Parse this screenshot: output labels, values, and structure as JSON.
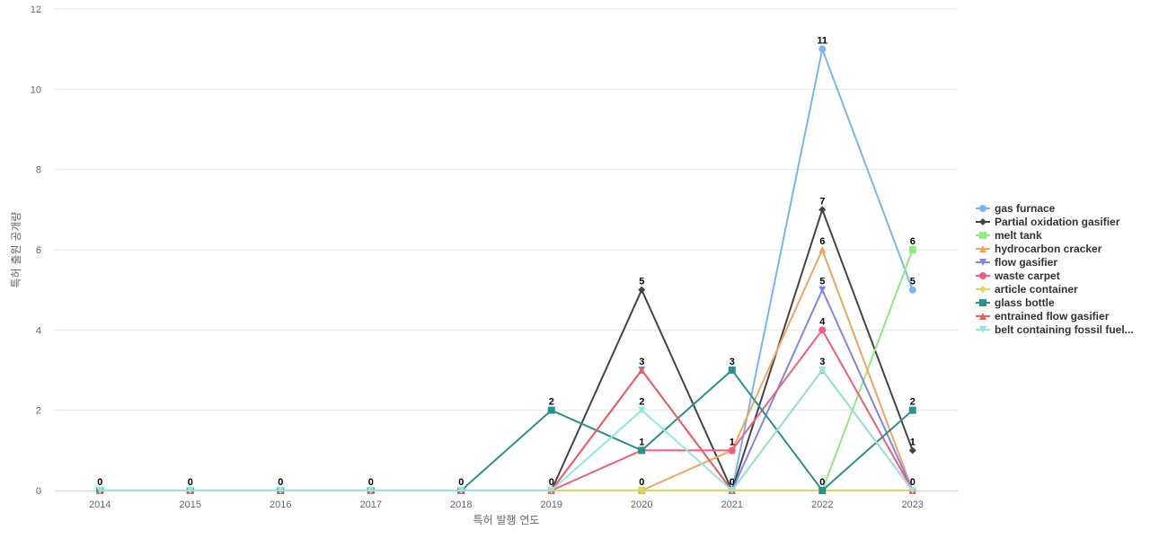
{
  "chart_data": {
    "type": "line",
    "title": "",
    "xlabel": "특허 발행 연도",
    "ylabel": "특허 출원 공개량",
    "categories": [
      "2014",
      "2015",
      "2016",
      "2017",
      "2018",
      "2019",
      "2020",
      "2021",
      "2022",
      "2023"
    ],
    "ylim": [
      0,
      12
    ],
    "yticks": [
      0,
      2,
      4,
      6,
      8,
      10,
      12
    ],
    "grid": "horizontal",
    "legend_position": "right",
    "data_labels": [
      {
        "x": "2014",
        "text": "0"
      },
      {
        "x": "2015",
        "text": "0"
      },
      {
        "x": "2016",
        "text": "0"
      },
      {
        "x": "2017",
        "text": "0"
      },
      {
        "x": "2018",
        "text": "0"
      },
      {
        "x": "2019",
        "text": "2",
        "y": 2
      },
      {
        "x": "2019",
        "text": "0",
        "y": 0
      },
      {
        "x": "2020",
        "text": "5",
        "y": 5
      },
      {
        "x": "2020",
        "text": "3",
        "y": 3
      },
      {
        "x": "2020",
        "text": "2",
        "y": 2
      },
      {
        "x": "2020",
        "text": "1",
        "y": 1
      },
      {
        "x": "2020",
        "text": "0",
        "y": 0
      },
      {
        "x": "2021",
        "text": "3",
        "y": 3
      },
      {
        "x": "2021",
        "text": "1",
        "y": 1
      },
      {
        "x": "2021",
        "text": "0",
        "y": 0
      },
      {
        "x": "2022",
        "text": "11",
        "y": 11
      },
      {
        "x": "2022",
        "text": "7",
        "y": 7
      },
      {
        "x": "2022",
        "text": "6",
        "y": 6
      },
      {
        "x": "2022",
        "text": "5",
        "y": 5
      },
      {
        "x": "2022",
        "text": "4",
        "y": 4
      },
      {
        "x": "2022",
        "text": "3",
        "y": 3
      },
      {
        "x": "2022",
        "text": "0",
        "y": 0
      },
      {
        "x": "2023",
        "text": "6",
        "y": 6
      },
      {
        "x": "2023",
        "text": "5",
        "y": 5
      },
      {
        "x": "2023",
        "text": "2",
        "y": 2
      },
      {
        "x": "2023",
        "text": "1",
        "y": 1
      },
      {
        "x": "2023",
        "text": "0",
        "y": 0
      }
    ],
    "series": [
      {
        "name": "gas furnace",
        "color": "#7cb5ec",
        "marker": "circle",
        "values": [
          0,
          0,
          0,
          0,
          0,
          0,
          0,
          0,
          11,
          5
        ]
      },
      {
        "name": "Partial oxidation gasifier",
        "color": "#434348",
        "marker": "diamond",
        "values": [
          0,
          0,
          0,
          0,
          0,
          0,
          5,
          0,
          7,
          1
        ]
      },
      {
        "name": "melt tank",
        "color": "#90ed7d",
        "marker": "square",
        "values": [
          0,
          0,
          0,
          0,
          0,
          0,
          0,
          0,
          0,
          6
        ]
      },
      {
        "name": "hydrocarbon cracker",
        "color": "#f7a35c",
        "marker": "triangle",
        "values": [
          0,
          0,
          0,
          0,
          0,
          0,
          0,
          1,
          6,
          0
        ]
      },
      {
        "name": "flow gasifier",
        "color": "#8085e9",
        "marker": "triangle-down",
        "values": [
          0,
          0,
          0,
          0,
          0,
          0,
          3,
          0,
          5,
          0
        ]
      },
      {
        "name": "waste carpet",
        "color": "#f15c80",
        "marker": "circle",
        "values": [
          0,
          0,
          0,
          0,
          0,
          0,
          1,
          1,
          4,
          0
        ]
      },
      {
        "name": "article container",
        "color": "#e4d354",
        "marker": "diamond",
        "values": [
          0,
          0,
          0,
          0,
          0,
          0,
          0,
          0,
          0,
          0
        ]
      },
      {
        "name": "glass bottle",
        "color": "#2b908f",
        "marker": "square",
        "values": [
          0,
          0,
          0,
          0,
          0,
          2,
          1,
          3,
          0,
          2
        ]
      },
      {
        "name": "entrained flow gasifier",
        "color": "#f45b5b",
        "marker": "triangle",
        "values": [
          0,
          0,
          0,
          0,
          0,
          0,
          3,
          0,
          3,
          0
        ]
      },
      {
        "name": "belt containing fossil fuel...",
        "color": "#91e8e1",
        "marker": "triangle-down",
        "values": [
          0,
          0,
          0,
          0,
          0,
          0,
          2,
          0,
          3,
          0
        ]
      }
    ]
  }
}
